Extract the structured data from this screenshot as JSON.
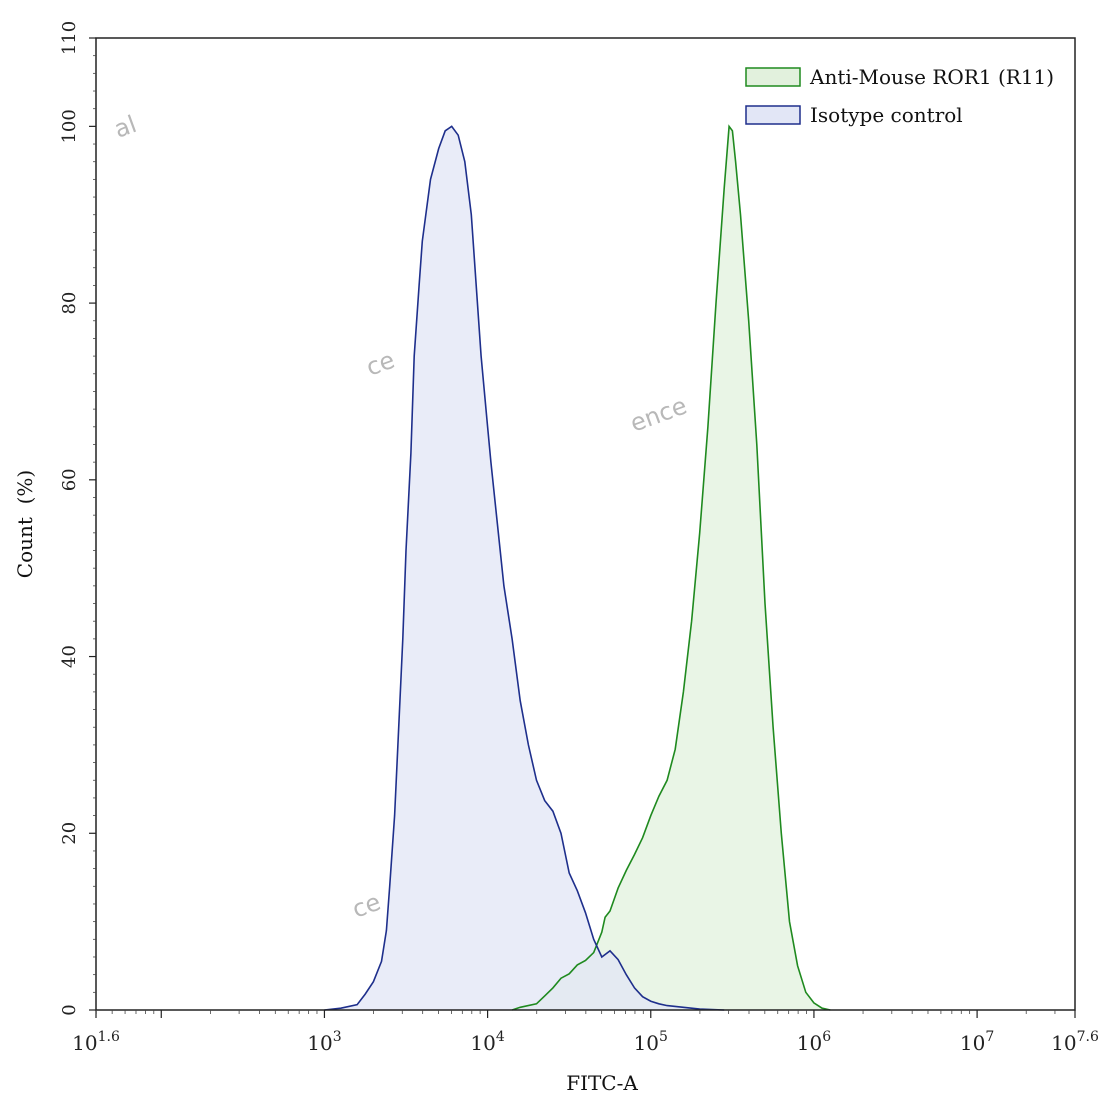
{
  "chart_data": {
    "type": "area",
    "xlabel": "FITC-A",
    "ylabel": "Count  (%)",
    "x_scale": "log10",
    "xlim": [
      1.6,
      7.6
    ],
    "ylim": [
      0,
      110
    ],
    "grid": false,
    "legend_position": "top-right",
    "x_tick_labels": [
      {
        "base": "10",
        "exp": "1.6",
        "log": 1.6
      },
      {
        "base": "10",
        "exp": "3",
        "log": 3
      },
      {
        "base": "10",
        "exp": "4",
        "log": 4
      },
      {
        "base": "10",
        "exp": "5",
        "log": 5
      },
      {
        "base": "10",
        "exp": "6",
        "log": 6
      },
      {
        "base": "10",
        "exp": "7",
        "log": 7
      },
      {
        "base": "10",
        "exp": "7.6",
        "log": 7.6
      }
    ],
    "y_tick_labels": [
      "0",
      "20",
      "40",
      "60",
      "80",
      "100",
      "110"
    ],
    "y_ticks": [
      0,
      20,
      40,
      60,
      80,
      100,
      110
    ],
    "series": [
      {
        "name": "Anti-Mouse ROR1 (R11)",
        "stroke": "#1f8a1f",
        "fill": "#e2f1dd",
        "points": [
          [
            4.15,
            0
          ],
          [
            4.2,
            0.3
          ],
          [
            4.3,
            0.7
          ],
          [
            4.35,
            1.6
          ],
          [
            4.4,
            2.5
          ],
          [
            4.45,
            3.6
          ],
          [
            4.5,
            4.1
          ],
          [
            4.55,
            5.1
          ],
          [
            4.6,
            5.6
          ],
          [
            4.65,
            6.5
          ],
          [
            4.7,
            8.8
          ],
          [
            4.72,
            10.5
          ],
          [
            4.75,
            11.2
          ],
          [
            4.8,
            13.8
          ],
          [
            4.85,
            15.8
          ],
          [
            4.9,
            17.6
          ],
          [
            4.95,
            19.5
          ],
          [
            5.0,
            22.0
          ],
          [
            5.05,
            24.2
          ],
          [
            5.1,
            26.0
          ],
          [
            5.15,
            29.5
          ],
          [
            5.2,
            36.0
          ],
          [
            5.25,
            44.0
          ],
          [
            5.3,
            54.0
          ],
          [
            5.35,
            66.0
          ],
          [
            5.4,
            80.0
          ],
          [
            5.45,
            93.0
          ],
          [
            5.48,
            100.0
          ],
          [
            5.5,
            99.5
          ],
          [
            5.52,
            96.0
          ],
          [
            5.55,
            90.0
          ],
          [
            5.6,
            78.0
          ],
          [
            5.65,
            64.0
          ],
          [
            5.7,
            46.0
          ],
          [
            5.75,
            32.0
          ],
          [
            5.8,
            20.0
          ],
          [
            5.85,
            10.0
          ],
          [
            5.9,
            5.0
          ],
          [
            5.95,
            2.0
          ],
          [
            6.0,
            0.8
          ],
          [
            6.05,
            0.2
          ],
          [
            6.1,
            0
          ]
        ]
      },
      {
        "name": "Isotype control",
        "stroke": "#1e2f8c",
        "fill": "#e2e6f6",
        "points": [
          [
            3.0,
            0
          ],
          [
            3.1,
            0.2
          ],
          [
            3.2,
            0.6
          ],
          [
            3.25,
            1.8
          ],
          [
            3.3,
            3.2
          ],
          [
            3.35,
            5.5
          ],
          [
            3.38,
            9.0
          ],
          [
            3.4,
            14.0
          ],
          [
            3.43,
            22.0
          ],
          [
            3.45,
            30.0
          ],
          [
            3.48,
            42.0
          ],
          [
            3.5,
            52.0
          ],
          [
            3.53,
            63.0
          ],
          [
            3.55,
            74.0
          ],
          [
            3.58,
            82.0
          ],
          [
            3.6,
            87.0
          ],
          [
            3.65,
            94.0
          ],
          [
            3.7,
            97.5
          ],
          [
            3.74,
            99.5
          ],
          [
            3.78,
            100.0
          ],
          [
            3.82,
            99.0
          ],
          [
            3.86,
            96.0
          ],
          [
            3.9,
            90.0
          ],
          [
            3.93,
            82.0
          ],
          [
            3.96,
            74.0
          ],
          [
            4.0,
            66.0
          ],
          [
            4.02,
            62.0
          ],
          [
            4.06,
            55.0
          ],
          [
            4.1,
            48.0
          ],
          [
            4.15,
            42.0
          ],
          [
            4.2,
            35.0
          ],
          [
            4.25,
            30.0
          ],
          [
            4.3,
            26.0
          ],
          [
            4.35,
            23.7
          ],
          [
            4.4,
            22.5
          ],
          [
            4.45,
            20.0
          ],
          [
            4.5,
            15.5
          ],
          [
            4.55,
            13.5
          ],
          [
            4.6,
            11.0
          ],
          [
            4.65,
            8.0
          ],
          [
            4.7,
            6.0
          ],
          [
            4.75,
            6.7
          ],
          [
            4.8,
            5.7
          ],
          [
            4.85,
            4.0
          ],
          [
            4.9,
            2.5
          ],
          [
            4.95,
            1.5
          ],
          [
            5.0,
            1.0
          ],
          [
            5.05,
            0.7
          ],
          [
            5.1,
            0.5
          ],
          [
            5.2,
            0.3
          ],
          [
            5.3,
            0.1
          ],
          [
            5.45,
            0
          ]
        ]
      }
    ],
    "legend": [
      {
        "label": "Anti-Mouse ROR1 (R11)",
        "series": 0
      },
      {
        "label": "Isotype control",
        "series": 1
      }
    ]
  },
  "watermarks": [
    "al",
    "ce",
    "ence",
    "ce"
  ]
}
